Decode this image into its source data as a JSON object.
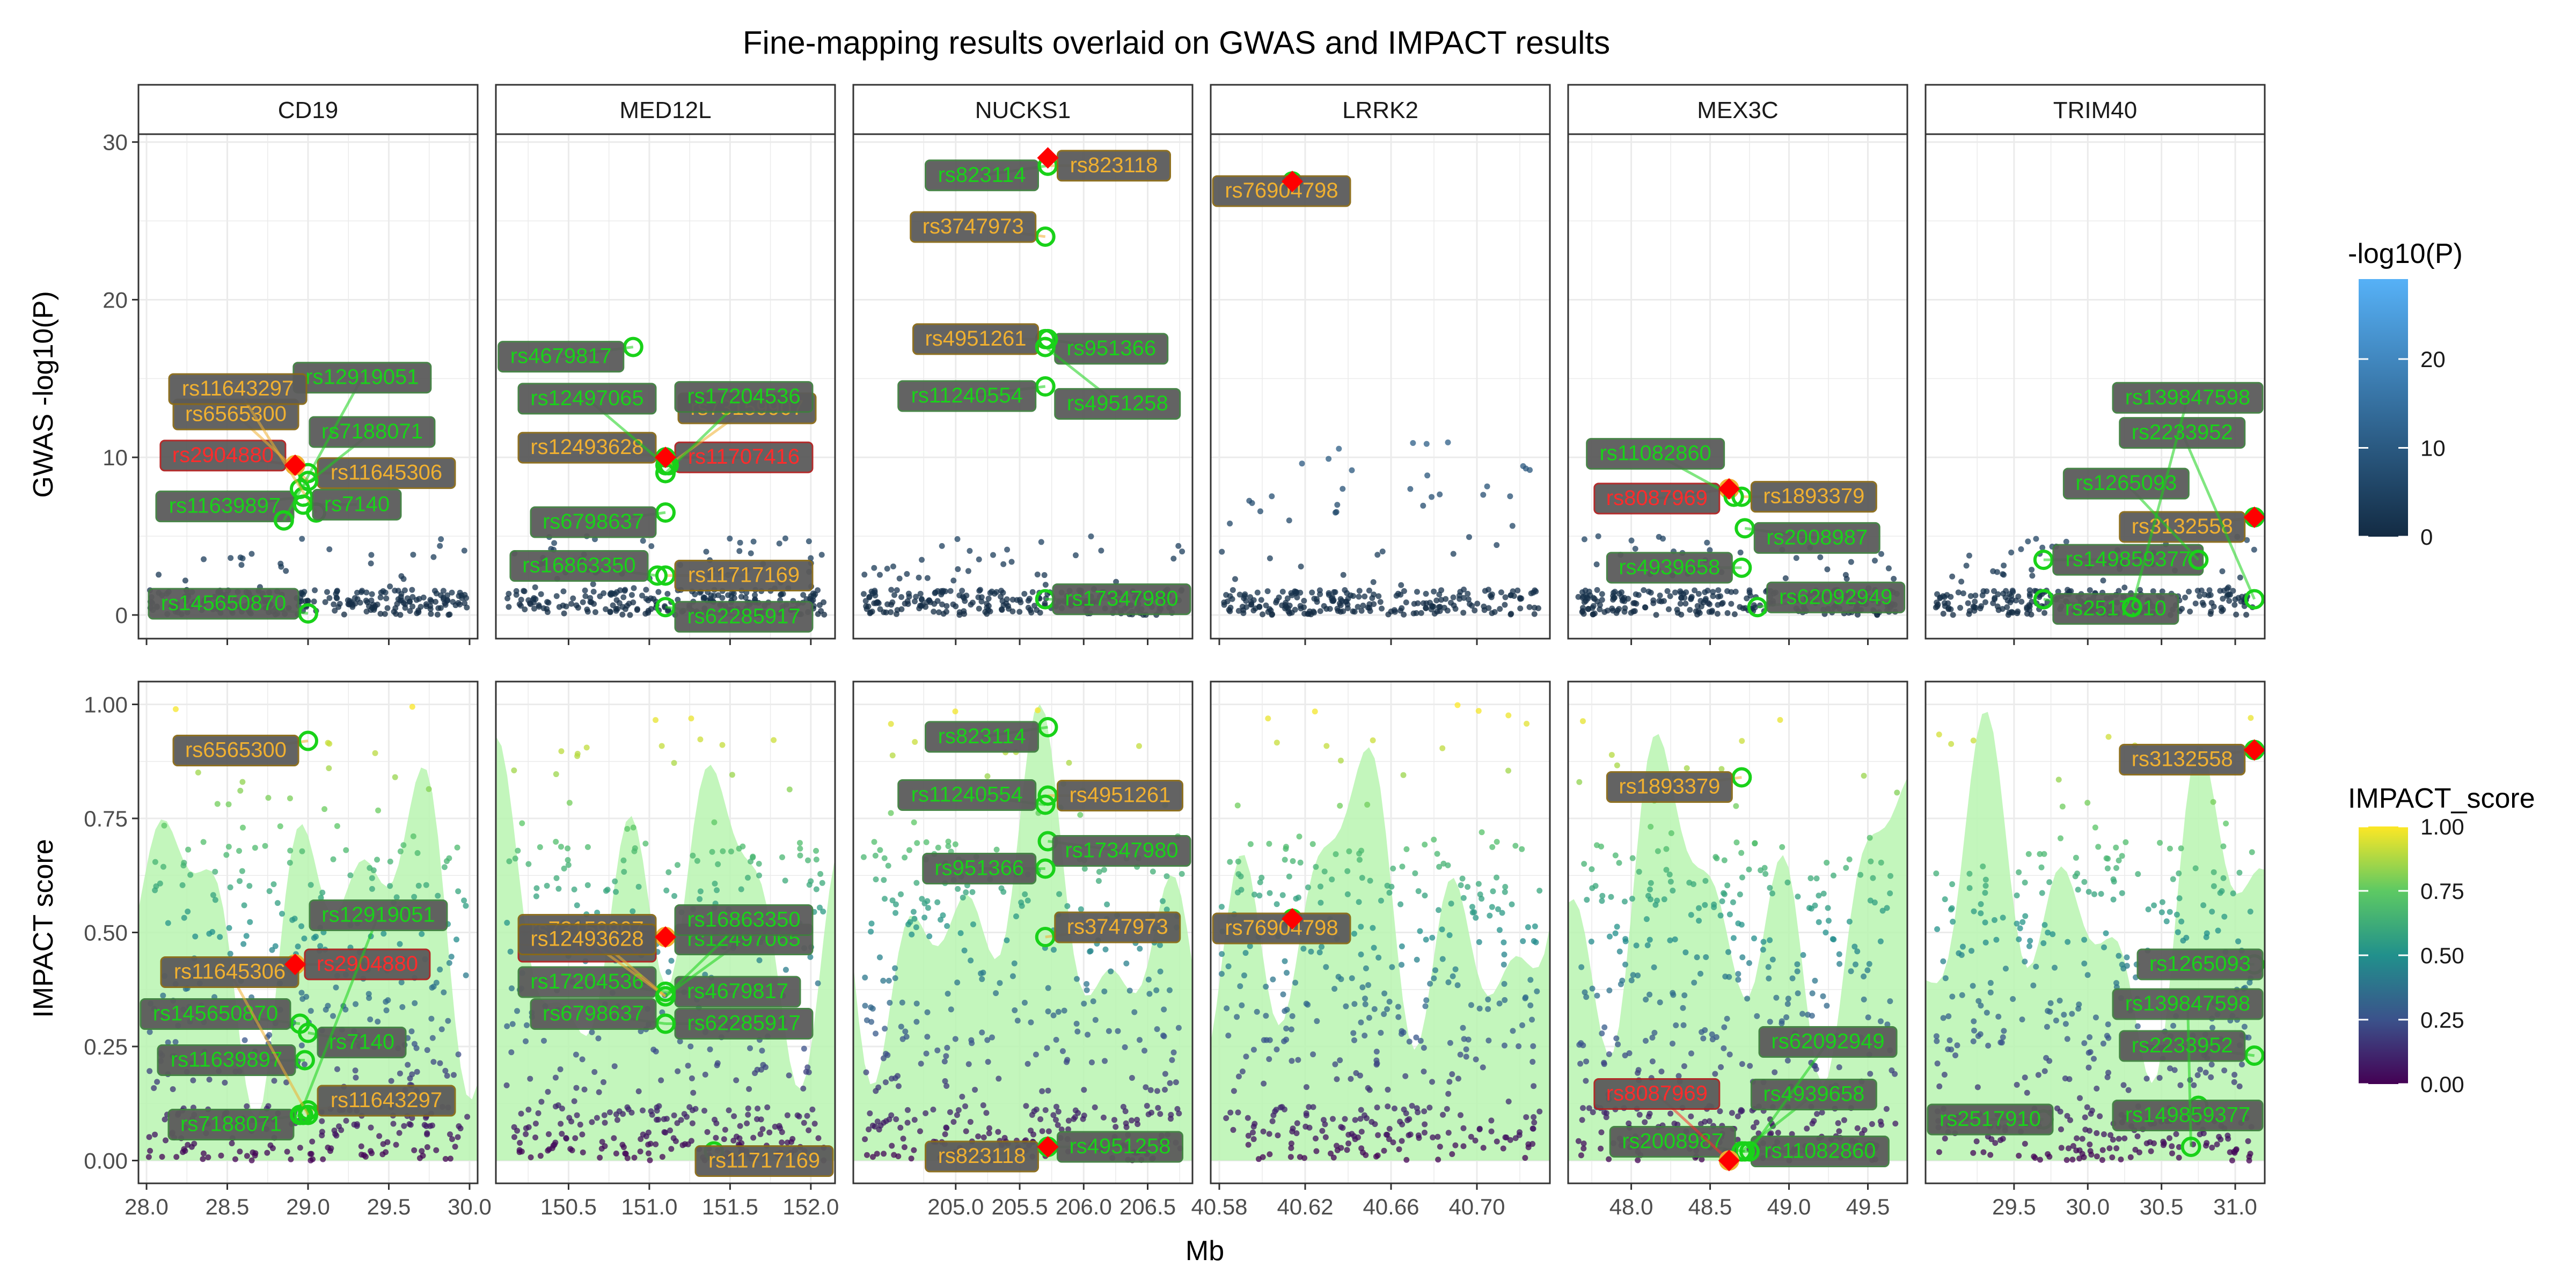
{
  "title": "Fine-mapping results overlaid on GWAS and IMPACT results",
  "colors": {
    "green_label": "#3f7f3f",
    "gold_label": "#8a6a16",
    "red_label": "#b02020",
    "label_fill": "#5b5b5b",
    "text_green": "#19d219",
    "text_gold": "#f0b030",
    "text_red": "#ff2b2b",
    "lead_marker": "#ff0000",
    "ridge_fill": "#b8f5b0"
  },
  "chart_data": {
    "type": "scatter",
    "facets": [
      "CD19",
      "MED12L",
      "NUCKS1",
      "LRRK2",
      "MEX3C",
      "TRIM40"
    ],
    "xlabel": "Mb",
    "rows": [
      {
        "ylabel": "GWAS -log10(P)",
        "ylim": [
          0,
          30
        ],
        "yticks": [
          0,
          10,
          20,
          30
        ]
      },
      {
        "ylabel": "IMPACT score",
        "ylim": [
          0,
          1
        ],
        "yticks": [
          0.0,
          0.25,
          0.5,
          0.75,
          1.0
        ],
        "ytick_labels": [
          "0.00",
          "0.25",
          "0.50",
          "0.75",
          "1.00"
        ]
      }
    ],
    "panels": [
      {
        "facet": "CD19",
        "xlim": [
          27.95,
          30.05
        ],
        "xticks": [
          28.0,
          28.5,
          29.0,
          29.5,
          30.0
        ],
        "xtick_labels": [
          "28.0",
          "28.5",
          "29.0",
          "29.5",
          "30.0"
        ],
        "lead": {
          "x": 28.92,
          "gwas": 9.5,
          "impact": 0.43
        },
        "gwas_labels": [
          {
            "id": "rs11639897",
            "x": 28.97,
            "y": 7.5,
            "color": "green"
          },
          {
            "id": "rs11645306",
            "x": 29.0,
            "y": 9.0,
            "color": "gold"
          },
          {
            "id": "rs2904880",
            "x": 28.92,
            "y": 9.5,
            "color": "red"
          },
          {
            "id": "rs7188071",
            "x": 28.95,
            "y": 8.0,
            "color": "green"
          },
          {
            "id": "rs6565300",
            "x": 29.0,
            "y": 8.5,
            "color": "gold"
          },
          {
            "id": "rs12919051",
            "x": 28.85,
            "y": 6.0,
            "color": "green"
          },
          {
            "id": "rs11643297",
            "x": 29.05,
            "y": 6.5,
            "color": "gold"
          },
          {
            "id": "rs7140",
            "x": 28.97,
            "y": 7.0,
            "color": "green"
          },
          {
            "id": "rs145650870",
            "x": 29.0,
            "y": 0.1,
            "color": "green"
          }
        ],
        "impact_labels": [
          {
            "id": "rs6565300",
            "x": 29.0,
            "y": 0.92,
            "color": "gold"
          },
          {
            "id": "rs2904880",
            "x": 28.92,
            "y": 0.43,
            "color": "red"
          },
          {
            "id": "rs145650870",
            "x": 28.95,
            "y": 0.3,
            "color": "green"
          },
          {
            "id": "rs7140",
            "x": 29.0,
            "y": 0.28,
            "color": "green"
          },
          {
            "id": "rs11639897",
            "x": 28.98,
            "y": 0.22,
            "color": "green"
          },
          {
            "id": "rs11643297",
            "x": 29.0,
            "y": 0.11,
            "color": "gold"
          },
          {
            "id": "rs7188071",
            "x": 28.97,
            "y": 0.1,
            "color": "green"
          },
          {
            "id": "rs12919051",
            "x": 28.95,
            "y": 0.1,
            "color": "green"
          },
          {
            "id": "rs11645306",
            "x": 29.0,
            "y": 0.1,
            "color": "gold"
          }
        ]
      },
      {
        "facet": "MED12L",
        "xlim": [
          150.05,
          152.15
        ],
        "xticks": [
          150.5,
          151.0,
          151.5,
          152.0
        ],
        "xtick_labels": [
          "150.5",
          "151.0",
          "151.5",
          "152.0"
        ],
        "lead": {
          "x": 151.1,
          "gwas": 10.0,
          "impact": 0.49
        },
        "gwas_labels": [
          {
            "id": "rs4679817",
            "x": 150.9,
            "y": 17.0,
            "color": "green"
          },
          {
            "id": "rs11707416",
            "x": 151.1,
            "y": 10.0,
            "color": "red"
          },
          {
            "id": "rs12493628",
            "x": 151.1,
            "y": 10.0,
            "color": "gold"
          },
          {
            "id": "rs73159907",
            "x": 151.12,
            "y": 9.5,
            "color": "gold"
          },
          {
            "id": "rs12497065",
            "x": 151.1,
            "y": 9.5,
            "color": "green"
          },
          {
            "id": "rs17204536",
            "x": 151.1,
            "y": 9.0,
            "color": "green"
          },
          {
            "id": "rs6798637",
            "x": 151.1,
            "y": 6.5,
            "color": "green"
          },
          {
            "id": "rs11717169",
            "x": 151.1,
            "y": 2.5,
            "color": "gold"
          },
          {
            "id": "rs16863350",
            "x": 151.05,
            "y": 2.5,
            "color": "green"
          },
          {
            "id": "rs62285917",
            "x": 151.1,
            "y": 0.5,
            "color": "green"
          }
        ],
        "impact_labels": [
          {
            "id": "rs11707416",
            "x": 151.1,
            "y": 0.49,
            "color": "red"
          },
          {
            "id": "rs4679817",
            "x": 151.1,
            "y": 0.37,
            "color": "green"
          },
          {
            "id": "rs17204536",
            "x": 151.1,
            "y": 0.37,
            "color": "green"
          },
          {
            "id": "rs12497065",
            "x": 151.1,
            "y": 0.36,
            "color": "green"
          },
          {
            "id": "rs73159907",
            "x": 151.1,
            "y": 0.36,
            "color": "gold"
          },
          {
            "id": "rs16863350",
            "x": 151.1,
            "y": 0.36,
            "color": "green"
          },
          {
            "id": "rs12493628",
            "x": 151.1,
            "y": 0.36,
            "color": "gold"
          },
          {
            "id": "rs62285917",
            "x": 151.1,
            "y": 0.3,
            "color": "green"
          },
          {
            "id": "rs6798637",
            "x": 151.1,
            "y": 0.3,
            "color": "green"
          },
          {
            "id": "rs11717169",
            "x": 151.4,
            "y": 0.02,
            "color": "gold"
          }
        ]
      },
      {
        "facet": "NUCKS1",
        "xlim": [
          204.2,
          206.85
        ],
        "xticks": [
          205.0,
          205.5,
          206.0,
          206.5
        ],
        "xtick_labels": [
          "205.0",
          "205.5",
          "206.0",
          "206.5"
        ],
        "lead": {
          "x": 205.72,
          "gwas": 29.0,
          "impact": 0.03
        },
        "gwas_labels": [
          {
            "id": "rs823114",
            "x": 205.72,
            "y": 28.5,
            "color": "green"
          },
          {
            "id": "rs823118",
            "x": 205.72,
            "y": 28.5,
            "color": "gold"
          },
          {
            "id": "rs3747973",
            "x": 205.7,
            "y": 24.0,
            "color": "gold"
          },
          {
            "id": "rs951366",
            "x": 205.7,
            "y": 17.5,
            "color": "green"
          },
          {
            "id": "rs4951261",
            "x": 205.72,
            "y": 17.5,
            "color": "gold"
          },
          {
            "id": "rs4951258",
            "x": 205.7,
            "y": 17.0,
            "color": "green"
          },
          {
            "id": "rs11240554",
            "x": 205.7,
            "y": 14.5,
            "color": "green"
          },
          {
            "id": "rs17347980",
            "x": 205.7,
            "y": 1.0,
            "color": "green"
          }
        ],
        "impact_labels": [
          {
            "id": "rs823114",
            "x": 205.72,
            "y": 0.95,
            "color": "green"
          },
          {
            "id": "rs4951261",
            "x": 205.72,
            "y": 0.8,
            "color": "gold"
          },
          {
            "id": "rs11240554",
            "x": 205.7,
            "y": 0.78,
            "color": "green"
          },
          {
            "id": "rs17347980",
            "x": 205.72,
            "y": 0.7,
            "color": "green"
          },
          {
            "id": "rs951366",
            "x": 205.7,
            "y": 0.64,
            "color": "green"
          },
          {
            "id": "rs3747973",
            "x": 205.7,
            "y": 0.49,
            "color": "gold"
          },
          {
            "id": "rs823118",
            "x": 205.72,
            "y": 0.03,
            "color": "gold"
          },
          {
            "id": "rs4951258",
            "x": 205.72,
            "y": 0.03,
            "color": "green"
          }
        ]
      },
      {
        "facet": "LRRK2",
        "xlim": [
          40.576,
          40.734
        ],
        "xticks": [
          40.58,
          40.62,
          40.66,
          40.7
        ],
        "xtick_labels": [
          "40.58",
          "40.62",
          "40.66",
          "40.70"
        ],
        "lead": {
          "x": 40.614,
          "gwas": 27.5,
          "impact": 0.53
        },
        "gwas_labels": [
          {
            "id": "rs76904798",
            "x": 40.614,
            "y": 27.5,
            "color": "gold"
          }
        ],
        "impact_labels": [
          {
            "id": "rs76904798",
            "x": 40.614,
            "y": 0.53,
            "color": "gold"
          }
        ]
      },
      {
        "facet": "MEX3C",
        "xlim": [
          47.6,
          49.75
        ],
        "xticks": [
          48.0,
          48.5,
          49.0,
          49.5
        ],
        "xtick_labels": [
          "48.0",
          "48.5",
          "49.0",
          "49.5"
        ],
        "lead": {
          "x": 48.62,
          "gwas": 8.0,
          "impact": 0.0
        },
        "gwas_labels": [
          {
            "id": "rs8087969",
            "x": 48.62,
            "y": 8.0,
            "color": "red"
          },
          {
            "id": "rs1893379",
            "x": 48.7,
            "y": 7.5,
            "color": "gold"
          },
          {
            "id": "rs11082860",
            "x": 48.65,
            "y": 7.5,
            "color": "green"
          },
          {
            "id": "rs2008987",
            "x": 48.72,
            "y": 5.5,
            "color": "green"
          },
          {
            "id": "rs4939658",
            "x": 48.7,
            "y": 3.0,
            "color": "green"
          },
          {
            "id": "rs62092949",
            "x": 48.8,
            "y": 0.5,
            "color": "green"
          }
        ],
        "impact_labels": [
          {
            "id": "rs1893379",
            "x": 48.7,
            "y": 0.84,
            "color": "gold"
          },
          {
            "id": "rs11082860",
            "x": 48.7,
            "y": 0.02,
            "color": "green"
          },
          {
            "id": "rs2008987",
            "x": 48.72,
            "y": 0.02,
            "color": "green"
          },
          {
            "id": "rs4939658",
            "x": 48.7,
            "y": 0.02,
            "color": "green"
          },
          {
            "id": "rs8087969",
            "x": 48.62,
            "y": 0.0,
            "color": "red"
          },
          {
            "id": "rs62092949",
            "x": 48.75,
            "y": 0.02,
            "color": "green"
          }
        ]
      },
      {
        "facet": "TRIM40",
        "xlim": [
          28.9,
          31.2
        ],
        "xticks": [
          29.5,
          30.0,
          30.5,
          31.0
        ],
        "xtick_labels": [
          "29.5",
          "30.0",
          "30.5",
          "31.0"
        ],
        "lead": {
          "x": 31.13,
          "gwas": 6.2,
          "impact": 0.9
        },
        "gwas_labels": [
          {
            "id": "rs3132558",
            "x": 31.13,
            "y": 6.2,
            "color": "gold"
          },
          {
            "id": "rs149859377",
            "x": 29.7,
            "y": 3.5,
            "color": "green"
          },
          {
            "id": "rs1265093",
            "x": 30.75,
            "y": 3.5,
            "color": "green"
          },
          {
            "id": "rs2517910",
            "x": 29.7,
            "y": 1.0,
            "color": "green"
          },
          {
            "id": "rs2233952",
            "x": 31.13,
            "y": 1.0,
            "color": "green"
          },
          {
            "id": "rs139847598",
            "x": 30.3,
            "y": 0.5,
            "color": "green"
          }
        ],
        "impact_labels": [
          {
            "id": "rs3132558",
            "x": 31.13,
            "y": 0.9,
            "color": "gold"
          },
          {
            "id": "rs1265093",
            "x": 31.13,
            "y": 0.43,
            "color": "green"
          },
          {
            "id": "rs2233952",
            "x": 31.13,
            "y": 0.23,
            "color": "green"
          },
          {
            "id": "rs149859377",
            "x": 30.75,
            "y": 0.12,
            "color": "green"
          },
          {
            "id": "rs2517910",
            "x": 29.7,
            "y": 0.09,
            "color": "green"
          },
          {
            "id": "rs139847598",
            "x": 30.7,
            "y": 0.03,
            "color": "green"
          }
        ]
      }
    ],
    "legends": [
      {
        "title": "-log10(P)",
        "type": "colorbar",
        "colors": [
          "#132b43",
          "#56b1f7"
        ],
        "ticks": [
          0,
          10,
          20
        ],
        "range": [
          0,
          29
        ]
      },
      {
        "title": "IMPACT_score",
        "type": "colorbar",
        "colors": [
          "#440154",
          "#3b528b",
          "#21908c",
          "#5dc963",
          "#fde725"
        ],
        "ticks": [
          0.0,
          0.25,
          0.5,
          0.75,
          1.0
        ],
        "tick_labels": [
          "0.00",
          "0.25",
          "0.50",
          "0.75",
          "1.00"
        ],
        "range": [
          0,
          1
        ]
      }
    ],
    "grid": true,
    "legend_placement": "right"
  }
}
